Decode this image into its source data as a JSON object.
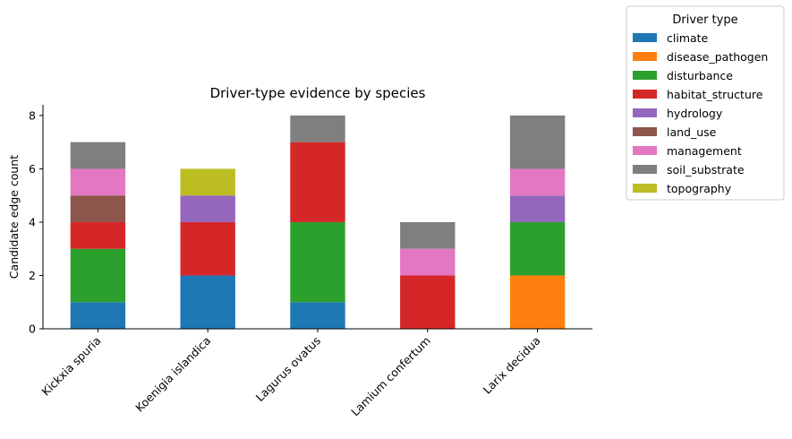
{
  "chart_data": {
    "type": "bar",
    "stacked": true,
    "title": "Driver-type evidence by species",
    "xlabel": "",
    "ylabel": "Candidate edge count",
    "ylim": [
      0,
      8.4
    ],
    "yticks": [
      0,
      2,
      4,
      6,
      8
    ],
    "categories": [
      "Kickxia spuria",
      "Koenigia islandica",
      "Lagurus ovatus",
      "Lamium confertum",
      "Larix decidua"
    ],
    "legend": {
      "title": "Driver type",
      "placement": "outside top-right"
    },
    "grid": false,
    "series": [
      {
        "name": "climate",
        "color": "#1f77b4",
        "values": [
          1,
          2,
          1,
          0,
          0
        ]
      },
      {
        "name": "disease_pathogen",
        "color": "#ff7f0e",
        "values": [
          0,
          0,
          0,
          0,
          2
        ]
      },
      {
        "name": "disturbance",
        "color": "#2ca02c",
        "values": [
          2,
          0,
          3,
          0,
          2
        ]
      },
      {
        "name": "habitat_structure",
        "color": "#d62728",
        "values": [
          1,
          2,
          3,
          2,
          0
        ]
      },
      {
        "name": "hydrology",
        "color": "#9467bd",
        "values": [
          0,
          1,
          0,
          0,
          1
        ]
      },
      {
        "name": "land_use",
        "color": "#8c564b",
        "values": [
          1,
          0,
          0,
          0,
          0
        ]
      },
      {
        "name": "management",
        "color": "#e377c2",
        "values": [
          1,
          0,
          0,
          1,
          1
        ]
      },
      {
        "name": "soil_substrate",
        "color": "#7f7f7f",
        "values": [
          1,
          0,
          1,
          1,
          2
        ]
      },
      {
        "name": "topography",
        "color": "#bcbd22",
        "values": [
          0,
          1,
          0,
          0,
          0
        ]
      }
    ]
  }
}
